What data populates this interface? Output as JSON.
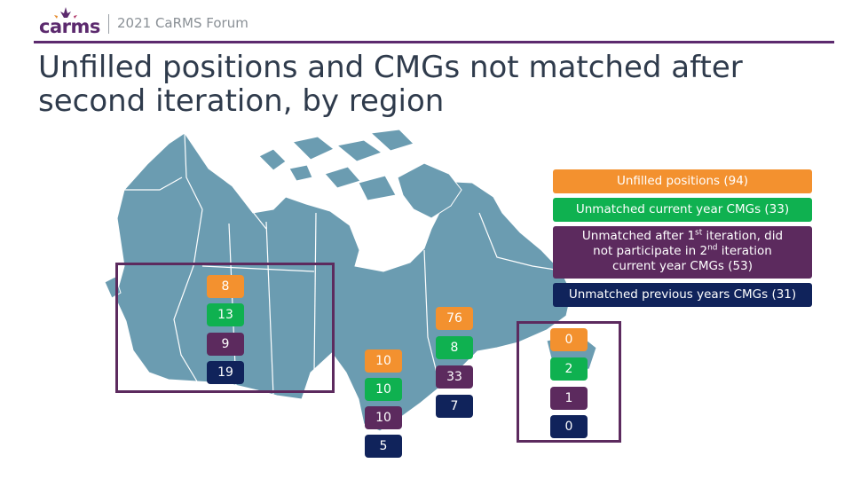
{
  "header": {
    "logo_text": "carms",
    "forum_label": "2021 CaRMS Forum"
  },
  "title": "Unfilled positions and CMGs not matched after second iteration, by region",
  "legend": {
    "unfilled": "Unfilled positions (94)",
    "unmatched_current": "Unmatched current year CMGs (33)",
    "did_not_participate": {
      "line1_pre": "Unmatched after 1",
      "line1_sup": "st",
      "line1_post": " iteration, did",
      "line2_pre": "not participate  in 2",
      "line2_sup": "nd",
      "line2_post": " iteration",
      "line3": "current year CMGs (53)"
    },
    "unmatched_previous": "Unmatched previous years CMGs (31)"
  },
  "regions": {
    "west": {
      "unfilled": "8",
      "unmatched_current": "13",
      "did_not_participate": "9",
      "unmatched_previous": "19"
    },
    "ontario": {
      "unfilled": "10",
      "unmatched_current": "10",
      "did_not_participate": "10",
      "unmatched_previous": "5"
    },
    "quebec": {
      "unfilled": "76",
      "unmatched_current": "8",
      "did_not_participate": "33",
      "unmatched_previous": "7"
    },
    "atlantic": {
      "unfilled": "0",
      "unmatched_current": "2",
      "did_not_participate": "1",
      "unmatched_previous": "0"
    }
  },
  "colors": {
    "unfilled": "#f3912f",
    "unmatched_current": "#0fb150",
    "did_not_participate": "#5c2a5e",
    "unmatched_previous": "#10235b",
    "map": "#6b9cb1",
    "accent": "#5c2a6e"
  }
}
